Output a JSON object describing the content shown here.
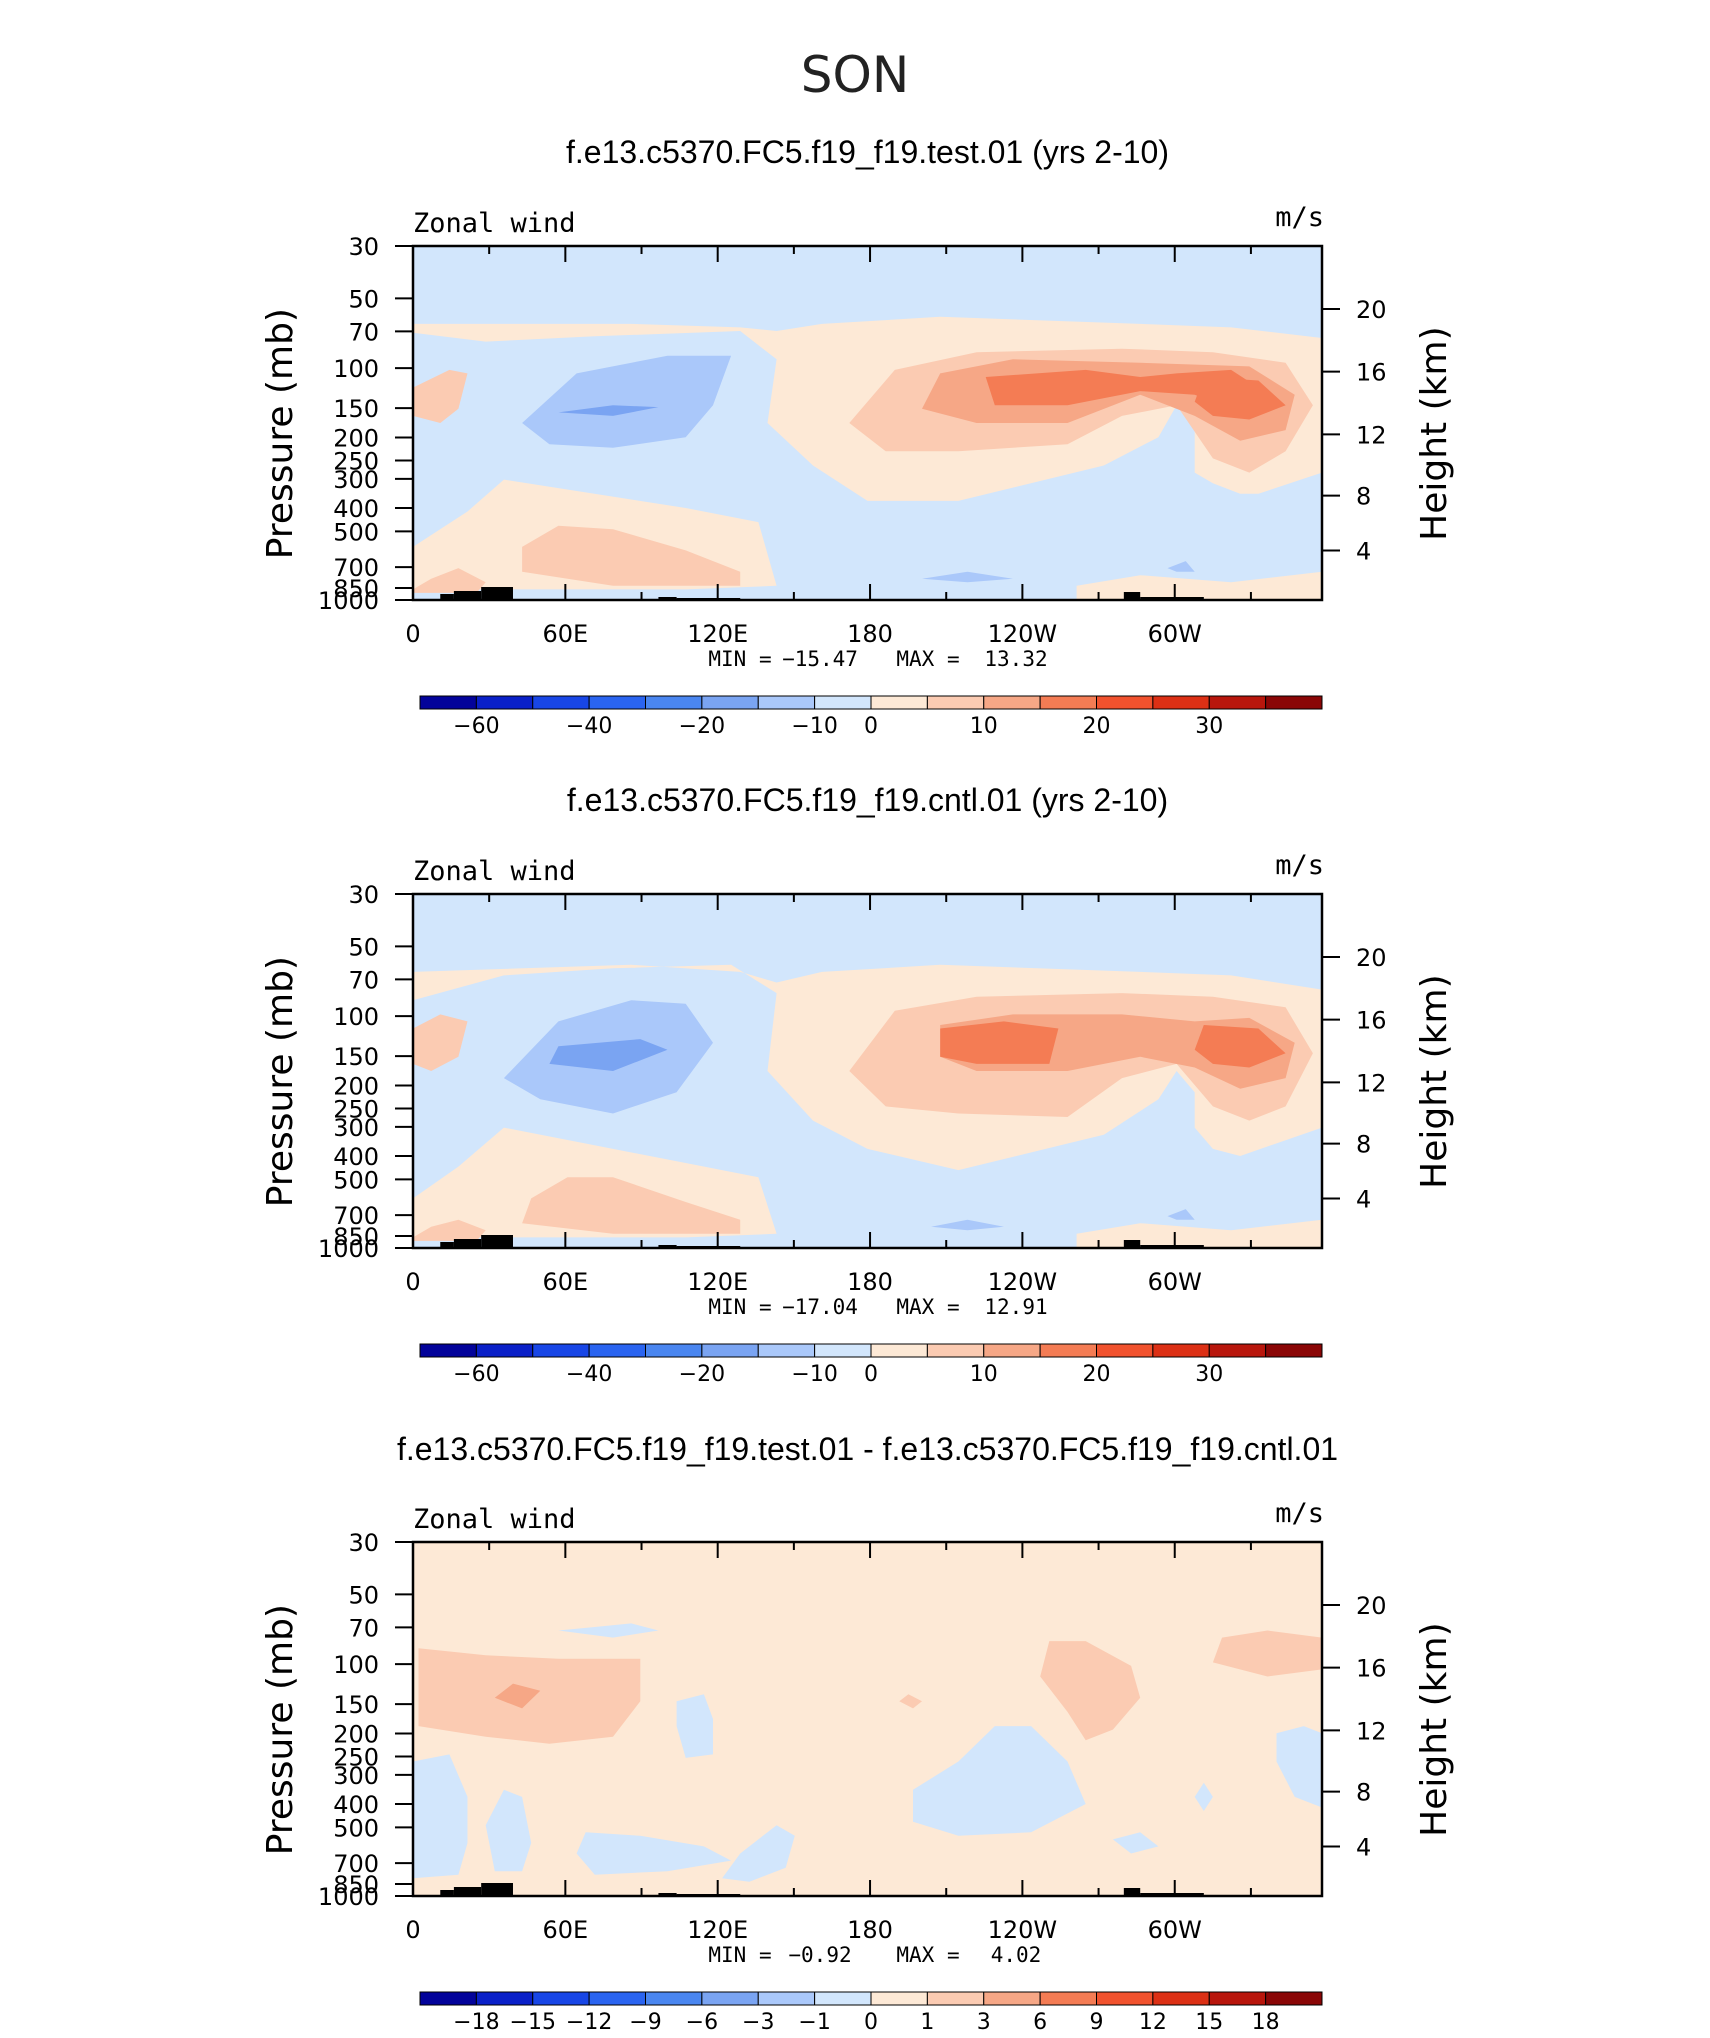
{
  "main_title": "SON",
  "colors": {
    "full_fills": [
      "#03039a",
      "#0a20c8",
      "#1846e6",
      "#2a64f0",
      "#4a86f0",
      "#7aa4f2",
      "#aac8fa",
      "#d2e6fc",
      "#fde9d6",
      "#fbcbb2",
      "#f6a786",
      "#f47c54",
      "#f1522e",
      "#dc3015",
      "#b8160c",
      "#8a0606"
    ],
    "diff_fills": [
      "#03039a",
      "#0a20c8",
      "#1846e6",
      "#2a64f0",
      "#4a86f0",
      "#7aa4f2",
      "#aac8fa",
      "#d2e6fc",
      "#fde9d6",
      "#fbcbb2",
      "#f6a786",
      "#f47c54",
      "#f1522e",
      "#dc3015",
      "#b8160c",
      "#8a0606"
    ]
  },
  "chart_data": [
    {
      "type": "heatmap",
      "title": "f.e13.c5370.FC5.f19_f19.test.01 (yrs 2-10)",
      "left_label": "Zonal wind",
      "right_label": "m/s",
      "ylabel": "Pressure (mb)",
      "y2label": "Height (km)",
      "x_ticks": [
        "0",
        "60E",
        "120E",
        "180",
        "120W",
        "60W"
      ],
      "y_ticks": [
        "30",
        "50",
        "70",
        "100",
        "150",
        "200",
        "250",
        "300",
        "400",
        "500",
        "700",
        "850",
        "1000"
      ],
      "y2_ticks": [
        "20",
        "16",
        "12",
        "8",
        "4"
      ],
      "stats": {
        "min_label": "MIN =",
        "min": "−15.47",
        "max_label": "MAX =",
        "max": "13.32"
      },
      "colorbar_labels": [
        "−60",
        "−40",
        "−20",
        "−10",
        "0",
        "10",
        "20",
        "30"
      ],
      "min": -15.47,
      "max": 13.32
    },
    {
      "type": "heatmap",
      "title": "f.e13.c5370.FC5.f19_f19.cntl.01 (yrs 2-10)",
      "left_label": "Zonal wind",
      "right_label": "m/s",
      "ylabel": "Pressure (mb)",
      "y2label": "Height (km)",
      "x_ticks": [
        "0",
        "60E",
        "120E",
        "180",
        "120W",
        "60W"
      ],
      "y_ticks": [
        "30",
        "50",
        "70",
        "100",
        "150",
        "200",
        "250",
        "300",
        "400",
        "500",
        "700",
        "850",
        "1000"
      ],
      "y2_ticks": [
        "20",
        "16",
        "12",
        "8",
        "4"
      ],
      "stats": {
        "min_label": "MIN =",
        "min": "−17.04",
        "max_label": "MAX =",
        "max": "12.91"
      },
      "colorbar_labels": [
        "−60",
        "−40",
        "−20",
        "−10",
        "0",
        "10",
        "20",
        "30"
      ],
      "min": -17.04,
      "max": 12.91
    },
    {
      "type": "heatmap",
      "title": "f.e13.c5370.FC5.f19_f19.test.01 - f.e13.c5370.FC5.f19_f19.cntl.01",
      "left_label": "Zonal wind",
      "right_label": "m/s",
      "ylabel": "Pressure (mb)",
      "y2label": "Height (km)",
      "x_ticks": [
        "0",
        "60E",
        "120E",
        "180",
        "120W",
        "60W"
      ],
      "y_ticks": [
        "30",
        "50",
        "70",
        "100",
        "150",
        "200",
        "250",
        "300",
        "400",
        "500",
        "700",
        "850",
        "1000"
      ],
      "y2_ticks": [
        "20",
        "16",
        "12",
        "8",
        "4"
      ],
      "stats": {
        "min_label": "MIN =",
        "min": "−0.92",
        "max_label": "MAX =",
        "max": "4.02"
      },
      "colorbar_labels": [
        "−18",
        "−15",
        "−12",
        "−9",
        "−6",
        "−3",
        "−1",
        "0",
        "1",
        "3",
        "6",
        "9",
        "12",
        "15",
        "18"
      ],
      "min": -0.92,
      "max": 4.02
    }
  ]
}
